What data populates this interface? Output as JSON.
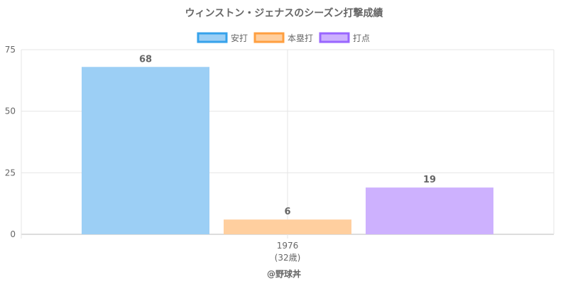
{
  "chart_data": {
    "type": "bar",
    "title": "ウィンストン・ジェナスのシーズン打撃成績",
    "categories": [
      "1976"
    ],
    "category_sublabels": [
      "(32歳)"
    ],
    "series": [
      {
        "name": "安打",
        "values": [
          68
        ],
        "color": "#9ccff5",
        "border": "#36a2eb"
      },
      {
        "name": "本塁打",
        "values": [
          6
        ],
        "color": "#ffcf9f",
        "border": "#ff9f40"
      },
      {
        "name": "打点",
        "values": [
          19
        ],
        "color": "#cdb1fe",
        "border": "#9966ff"
      }
    ],
    "yticks": [
      0,
      25,
      50,
      75
    ],
    "ylim": [
      0,
      75
    ],
    "grid": true,
    "legend_position": "top"
  },
  "credit": "@野球丼"
}
